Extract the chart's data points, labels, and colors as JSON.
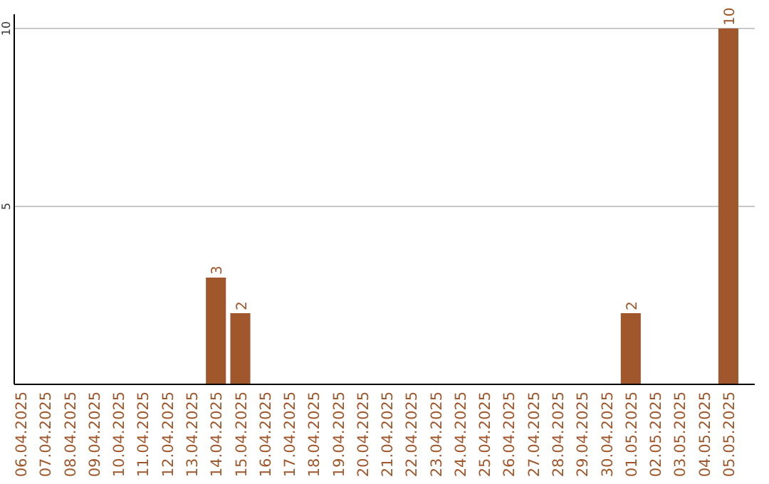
{
  "chart_data": {
    "type": "bar",
    "categories": [
      "06.04.2025",
      "07.04.2025",
      "08.04.2025",
      "09.04.2025",
      "10.04.2025",
      "11.04.2025",
      "12.04.2025",
      "13.04.2025",
      "14.04.2025",
      "15.04.2025",
      "16.04.2025",
      "17.04.2025",
      "18.04.2025",
      "19.04.2025",
      "20.04.2025",
      "21.04.2025",
      "22.04.2025",
      "23.04.2025",
      "24.04.2025",
      "25.04.2025",
      "26.04.2025",
      "27.04.2025",
      "28.04.2025",
      "29.04.2025",
      "30.04.2025",
      "01.05.2025",
      "02.05.2025",
      "03.05.2025",
      "04.05.2025",
      "05.05.2025"
    ],
    "values": [
      0,
      0,
      0,
      0,
      0,
      0,
      0,
      0,
      3,
      2,
      0,
      0,
      0,
      0,
      0,
      0,
      0,
      0,
      0,
      0,
      0,
      0,
      0,
      0,
      0,
      2,
      0,
      0,
      0,
      10
    ],
    "value_labels": [
      null,
      null,
      null,
      null,
      null,
      null,
      null,
      null,
      "3",
      "2",
      null,
      null,
      null,
      null,
      null,
      null,
      null,
      null,
      null,
      null,
      null,
      null,
      null,
      null,
      null,
      "2",
      null,
      null,
      null,
      "10"
    ],
    "color": "#a0572b",
    "ylim": [
      0,
      10
    ],
    "yticks": [
      5,
      10
    ],
    "grid": "y"
  }
}
